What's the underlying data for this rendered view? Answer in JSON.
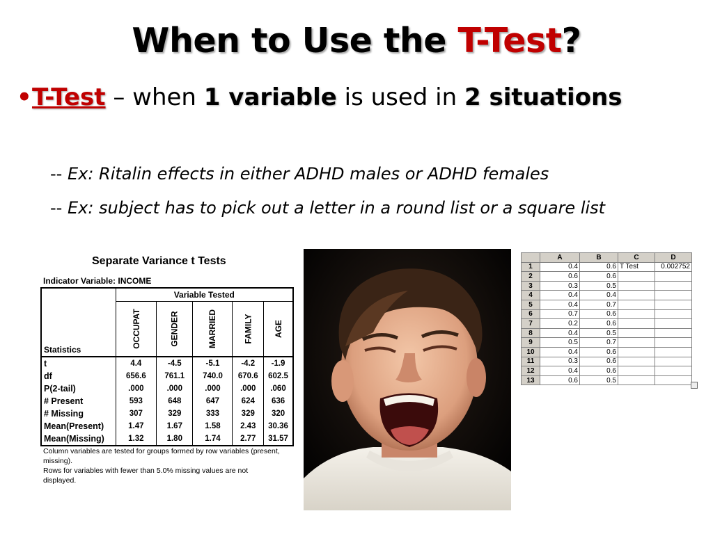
{
  "slide": {
    "title_pre": "When to Use the ",
    "title_accent": "T-Test",
    "title_post": "?",
    "bullet": {
      "marker": "•",
      "term": "T-Test",
      "seg1": " – when ",
      "b1": "1 variable",
      "seg2": " is used in ",
      "b2": "2 situations"
    },
    "examples": [
      {
        "dash": "-- ",
        "text": "Ex: Ritalin effects in either ADHD males or ADHD females"
      },
      {
        "dash": "-- ",
        "text": "Ex: subject has to pick out a letter in a round list or a square list"
      }
    ],
    "accent_color": "#c00000"
  },
  "stats_table": {
    "title": "Separate Variance t Tests",
    "indicator": "Indicator Variable: INCOME",
    "variable_tested": "Variable Tested",
    "statistics_label": "Statistics",
    "columns": [
      "OCCUPAT",
      "GENDER",
      "MARRIED",
      "FAMILY",
      "AGE"
    ],
    "rows": [
      {
        "label": "t",
        "values": [
          "4.4",
          "-4.5",
          "-5.1",
          "-4.2",
          "-1.9"
        ]
      },
      {
        "label": "df",
        "values": [
          "656.6",
          "761.1",
          "740.0",
          "670.6",
          "602.5"
        ]
      },
      {
        "label": "P(2-tail)",
        "values": [
          ".000",
          ".000",
          ".000",
          ".000",
          ".060"
        ]
      },
      {
        "label": "# Present",
        "values": [
          "593",
          "648",
          "647",
          "624",
          "636"
        ]
      },
      {
        "label": "# Missing",
        "values": [
          "307",
          "329",
          "333",
          "329",
          "320"
        ]
      },
      {
        "label": "Mean(Present)",
        "values": [
          "1.47",
          "1.67",
          "1.58",
          "2.43",
          "30.36"
        ]
      },
      {
        "label": "Mean(Missing)",
        "values": [
          "1.32",
          "1.80",
          "1.74",
          "2.77",
          "31.57"
        ]
      }
    ],
    "footnote1": "Column variables are tested for groups formed by row variables (present, missing).",
    "footnote2": "Rows for variables with fewer than 5.0% missing values are not displayed."
  },
  "spreadsheet": {
    "headers": [
      "A",
      "B",
      "C",
      "D"
    ],
    "rows": [
      {
        "n": "1",
        "a": "0.4",
        "b": "0.6",
        "c": "T Test",
        "d": "0.002752"
      },
      {
        "n": "2",
        "a": "0.6",
        "b": "0.6",
        "c": "",
        "d": ""
      },
      {
        "n": "3",
        "a": "0.3",
        "b": "0.5",
        "c": "",
        "d": ""
      },
      {
        "n": "4",
        "a": "0.4",
        "b": "0.4",
        "c": "",
        "d": ""
      },
      {
        "n": "5",
        "a": "0.4",
        "b": "0.7",
        "c": "",
        "d": ""
      },
      {
        "n": "6",
        "a": "0.7",
        "b": "0.6",
        "c": "",
        "d": ""
      },
      {
        "n": "7",
        "a": "0.2",
        "b": "0.6",
        "c": "",
        "d": ""
      },
      {
        "n": "8",
        "a": "0.4",
        "b": "0.5",
        "c": "",
        "d": ""
      },
      {
        "n": "9",
        "a": "0.5",
        "b": "0.7",
        "c": "",
        "d": ""
      },
      {
        "n": "10",
        "a": "0.4",
        "b": "0.6",
        "c": "",
        "d": ""
      },
      {
        "n": "11",
        "a": "0.3",
        "b": "0.6",
        "c": "",
        "d": ""
      },
      {
        "n": "12",
        "a": "0.4",
        "b": "0.6",
        "c": "",
        "d": ""
      },
      {
        "n": "13",
        "a": "0.6",
        "b": "0.5",
        "c": "",
        "d": ""
      }
    ]
  },
  "photo": {
    "icon": "screaming-boy-photo"
  }
}
